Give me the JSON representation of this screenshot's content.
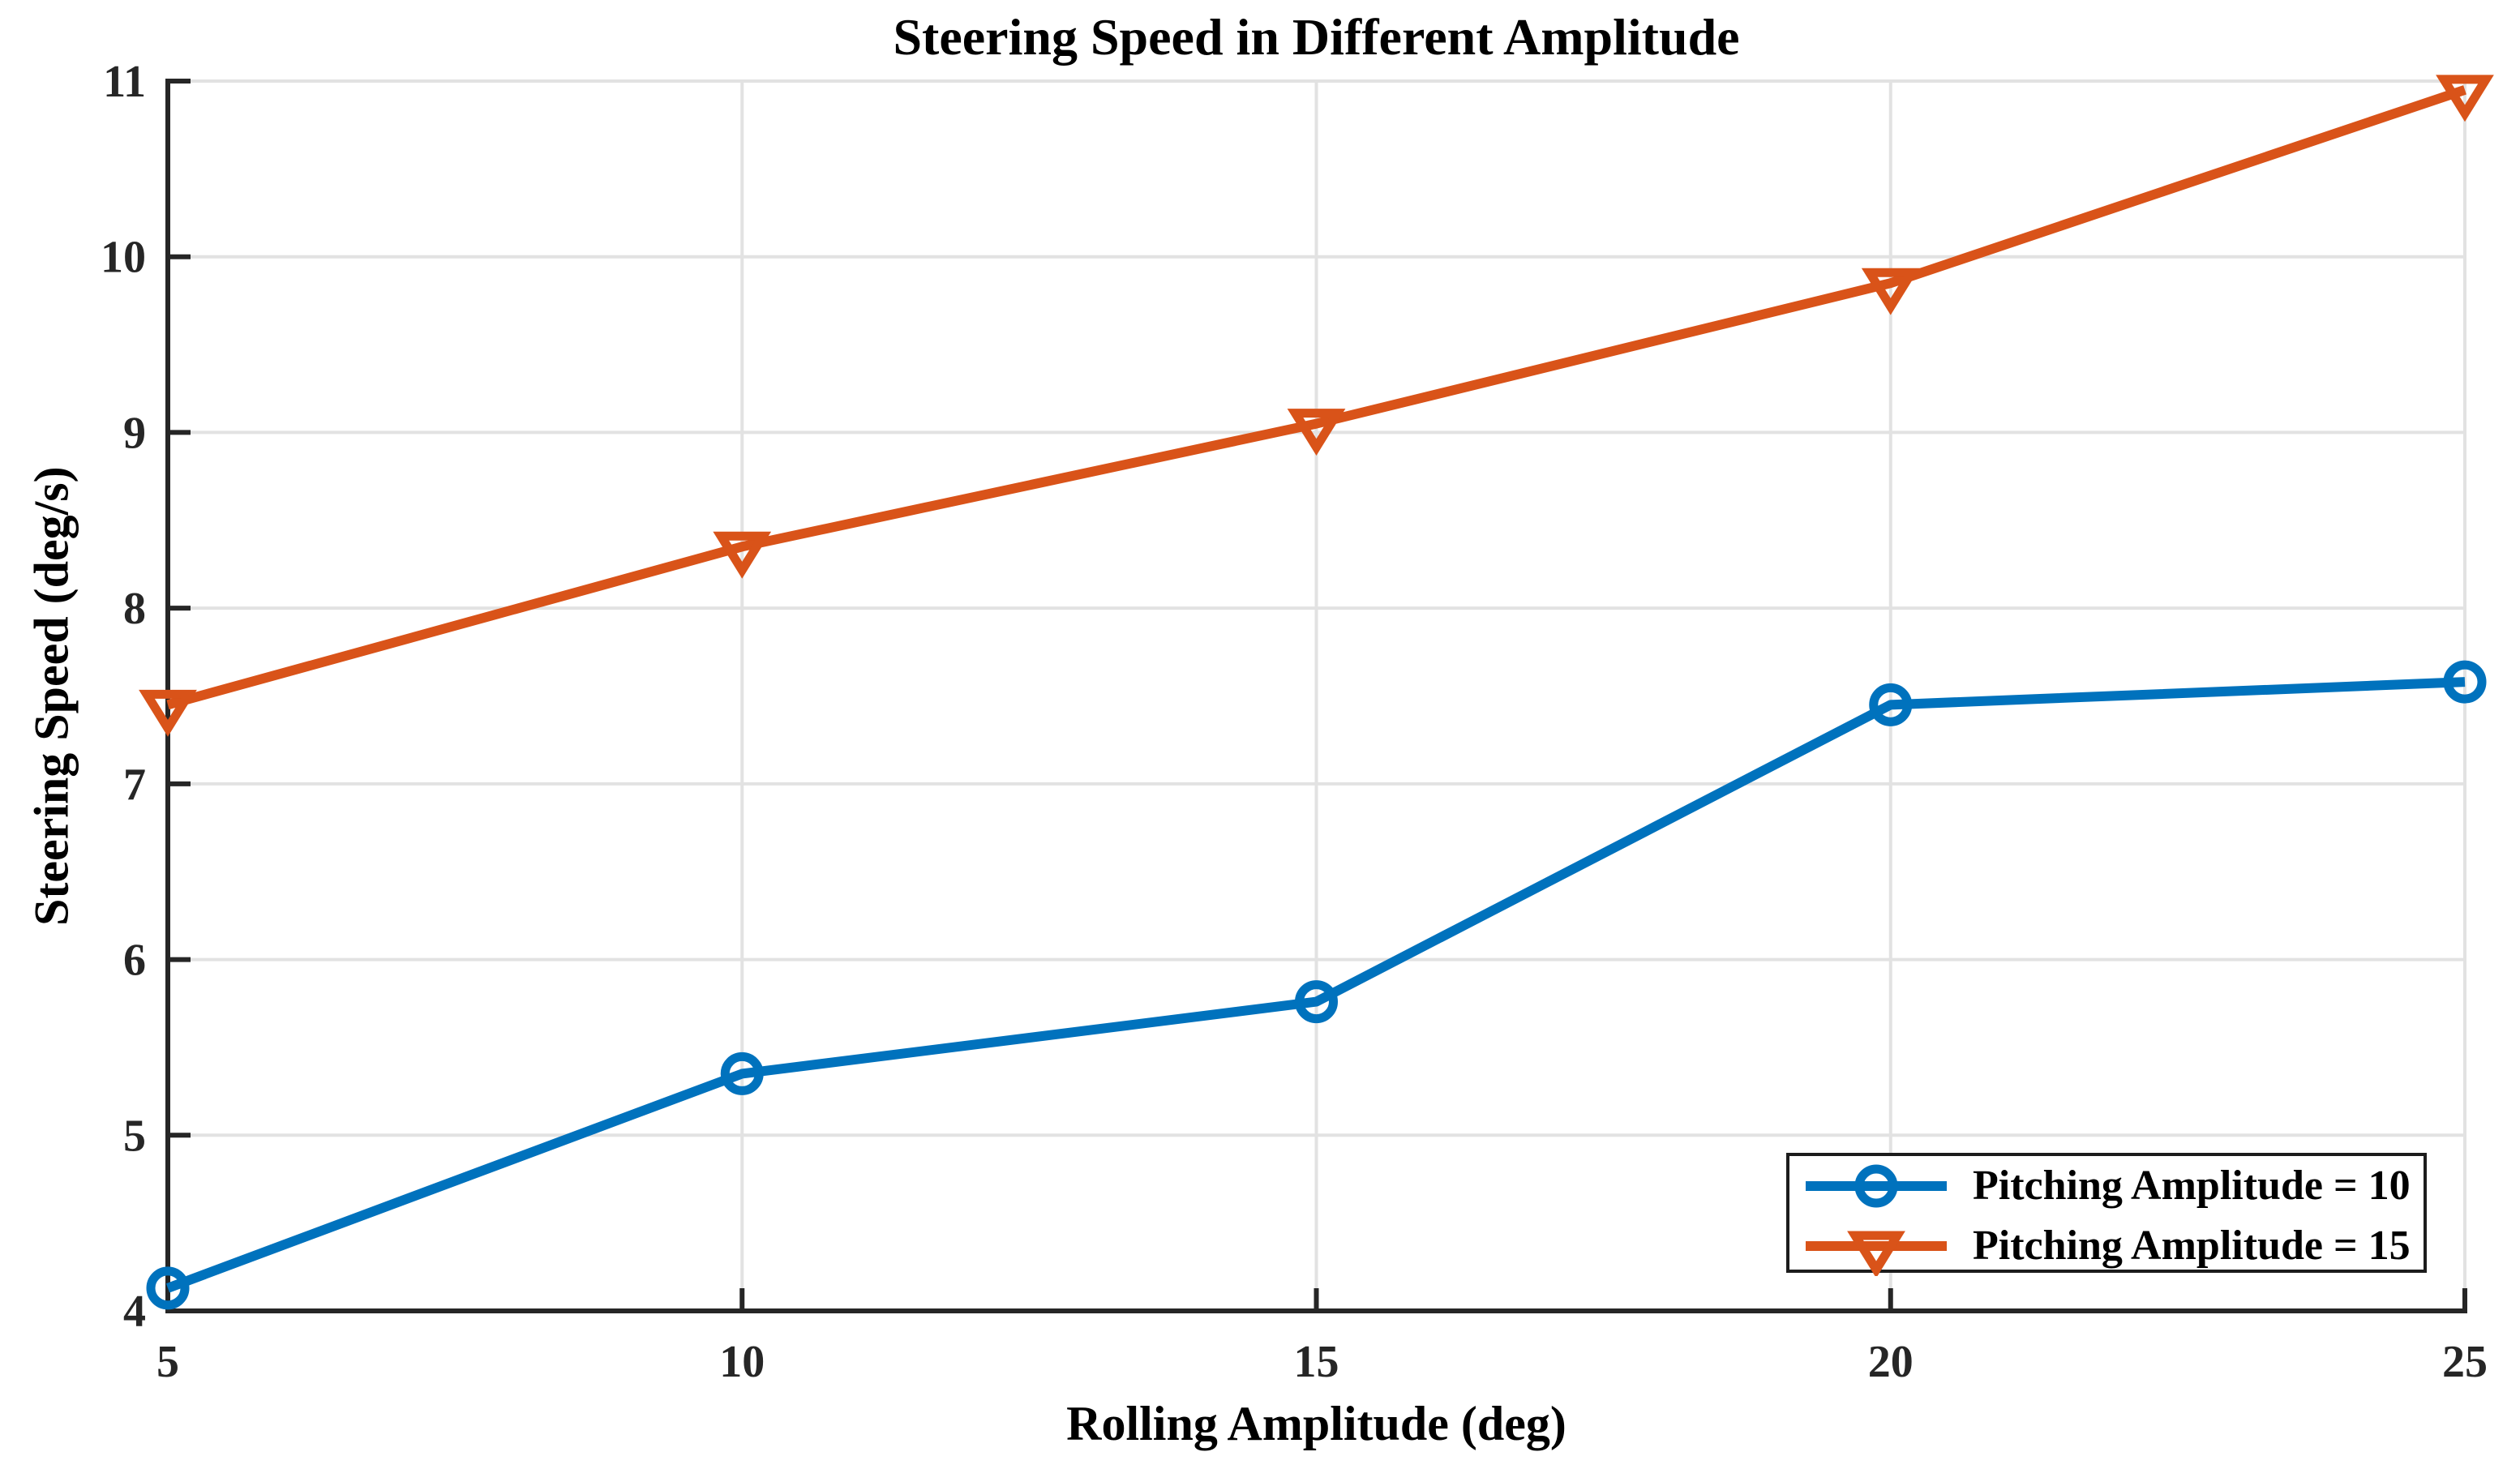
{
  "figure": {
    "title": "Steering Speed in Different Amplitude",
    "xlabel": "Rolling Amplitude (deg)",
    "ylabel": "Steering Speed (deg/s)"
  },
  "colors": {
    "series_blue": "#0072BD",
    "series_orange": "#D95319",
    "axis": "#262626",
    "tick_label": "#262626",
    "grid": "#E2E2E2",
    "text": "#000000",
    "legend_border": "#1C1C1C",
    "background": "#FFFFFF"
  },
  "chart_data": {
    "type": "line",
    "title": "Steering Speed in Different Amplitude",
    "xlabel": "Rolling Amplitude (deg)",
    "ylabel": "Steering Speed (deg/s)",
    "x": [
      5,
      10,
      15,
      20,
      25
    ],
    "series": [
      {
        "name": "Pitching Amplitude = 10",
        "color": "#0072BD",
        "marker": "circle",
        "values": [
          4.13,
          5.35,
          5.76,
          7.45,
          7.58
        ]
      },
      {
        "name": "Pitching Amplitude = 15",
        "color": "#D95319",
        "marker": "triangle-down",
        "values": [
          7.45,
          8.35,
          9.05,
          9.85,
          10.95
        ]
      }
    ],
    "xlim": [
      5,
      25
    ],
    "ylim": [
      4,
      11
    ],
    "xticks": [
      "5",
      "10",
      "15",
      "20",
      "25"
    ],
    "yticks": [
      "4",
      "5",
      "6",
      "7",
      "8",
      "9",
      "10",
      "11"
    ],
    "grid": true,
    "legend_position": "southeast"
  }
}
